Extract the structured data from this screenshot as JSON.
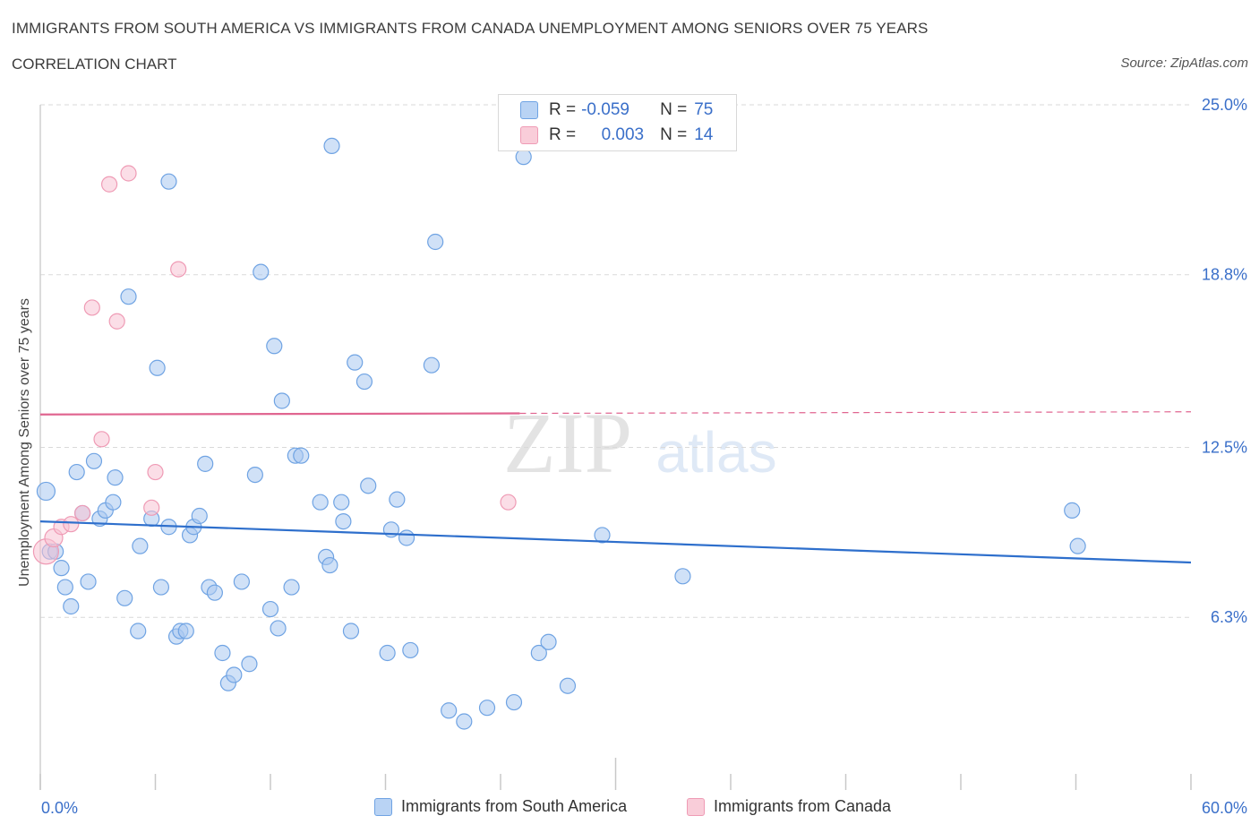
{
  "header": {
    "title": "IMMIGRANTS FROM SOUTH AMERICA VS IMMIGRANTS FROM CANADA UNEMPLOYMENT AMONG SENIORS OVER 75 YEARS",
    "subtitle": "CORRELATION CHART",
    "source": "Source: ZipAtlas.com"
  },
  "stats": {
    "row1": {
      "r_label": "R =",
      "r_value": "-0.059",
      "n_label": "N =",
      "n_value": "75"
    },
    "row2": {
      "r_label": "R =",
      "r_value": "0.003",
      "n_label": "N =",
      "n_value": "14"
    }
  },
  "watermark": {
    "zip": "ZIP",
    "atlas": "atlas"
  },
  "colors": {
    "south_america": "#6fa3e3",
    "south_america_fill": "#a9c8f0",
    "canada": "#ef9bb5",
    "canada_fill": "#f7c3d3",
    "sa_trend": "#2e6fcc",
    "ca_trend": "#e06590",
    "tick_label": "#3a6fc9",
    "grid": "#d9d9d9"
  },
  "chart_data": {
    "type": "scatter",
    "title": "IMMIGRANTS FROM SOUTH AMERICA VS IMMIGRANTS FROM CANADA UNEMPLOYMENT AMONG SENIORS OVER 75 YEARS",
    "xlabel": "",
    "ylabel": "Unemployment Among Seniors over 75 years",
    "xlim": [
      0,
      60
    ],
    "ylim": [
      0,
      25
    ],
    "x_tick_labels": [
      "0.0%",
      "60.0%"
    ],
    "y_tick_labels": [
      "25.0%",
      "18.8%",
      "12.5%",
      "6.3%"
    ],
    "y_ticks": [
      25.0,
      18.8,
      12.5,
      6.3
    ],
    "grid": true,
    "legend_position": "bottom",
    "series": [
      {
        "name": "Immigrants from South America",
        "color": "#6fa3e3",
        "trend": {
          "x": [
            0,
            60
          ],
          "y": [
            9.8,
            8.3
          ]
        },
        "points": [
          [
            0.3,
            10.9
          ],
          [
            0.5,
            8.7
          ],
          [
            0.8,
            8.7
          ],
          [
            1.1,
            8.1
          ],
          [
            1.3,
            7.4
          ],
          [
            1.6,
            6.7
          ],
          [
            1.9,
            11.6
          ],
          [
            2.2,
            10.1
          ],
          [
            2.5,
            7.6
          ],
          [
            2.8,
            12.0
          ],
          [
            3.1,
            9.9
          ],
          [
            3.4,
            10.2
          ],
          [
            3.8,
            10.5
          ],
          [
            3.9,
            11.4
          ],
          [
            4.4,
            7.0
          ],
          [
            4.6,
            18.0
          ],
          [
            5.1,
            5.8
          ],
          [
            5.2,
            8.9
          ],
          [
            5.8,
            9.9
          ],
          [
            6.1,
            15.4
          ],
          [
            6.3,
            7.4
          ],
          [
            6.7,
            22.2
          ],
          [
            6.7,
            9.6
          ],
          [
            7.1,
            5.6
          ],
          [
            7.3,
            5.8
          ],
          [
            7.6,
            5.8
          ],
          [
            7.8,
            9.3
          ],
          [
            8.0,
            9.6
          ],
          [
            8.3,
            10.0
          ],
          [
            8.6,
            11.9
          ],
          [
            8.8,
            7.4
          ],
          [
            9.1,
            7.2
          ],
          [
            9.5,
            5.0
          ],
          [
            9.8,
            3.9
          ],
          [
            10.1,
            4.2
          ],
          [
            10.5,
            7.6
          ],
          [
            10.9,
            4.6
          ],
          [
            11.2,
            11.5
          ],
          [
            11.5,
            18.9
          ],
          [
            12.2,
            16.2
          ],
          [
            12.0,
            6.6
          ],
          [
            12.4,
            5.9
          ],
          [
            12.6,
            14.2
          ],
          [
            13.1,
            7.4
          ],
          [
            13.3,
            12.2
          ],
          [
            13.6,
            12.2
          ],
          [
            14.6,
            10.5
          ],
          [
            14.9,
            8.5
          ],
          [
            15.1,
            8.2
          ],
          [
            15.2,
            23.5
          ],
          [
            15.7,
            10.5
          ],
          [
            15.8,
            9.8
          ],
          [
            16.2,
            5.8
          ],
          [
            16.4,
            15.6
          ],
          [
            16.9,
            14.9
          ],
          [
            17.1,
            11.1
          ],
          [
            18.1,
            5.0
          ],
          [
            18.3,
            9.5
          ],
          [
            18.6,
            10.6
          ],
          [
            19.1,
            9.2
          ],
          [
            19.3,
            5.1
          ],
          [
            20.4,
            15.5
          ],
          [
            20.6,
            20.0
          ],
          [
            21.3,
            2.9
          ],
          [
            22.1,
            2.5
          ],
          [
            23.3,
            3.0
          ],
          [
            24.7,
            3.2
          ],
          [
            25.2,
            23.1
          ],
          [
            26.0,
            5.0
          ],
          [
            26.5,
            5.4
          ],
          [
            27.5,
            3.8
          ],
          [
            29.3,
            9.3
          ],
          [
            33.5,
            7.8
          ],
          [
            53.8,
            10.2
          ],
          [
            54.1,
            8.9
          ]
        ]
      },
      {
        "name": "Immigrants from Canada",
        "color": "#ef9bb5",
        "trend": {
          "x": [
            0,
            60
          ],
          "y": [
            13.7,
            13.8
          ]
        },
        "trend_solid_until": 25,
        "points": [
          [
            0.3,
            8.7
          ],
          [
            0.7,
            9.2
          ],
          [
            1.1,
            9.6
          ],
          [
            1.6,
            9.7
          ],
          [
            2.2,
            10.1
          ],
          [
            2.7,
            17.6
          ],
          [
            3.2,
            12.8
          ],
          [
            3.6,
            22.1
          ],
          [
            4.0,
            17.1
          ],
          [
            4.6,
            22.5
          ],
          [
            5.8,
            10.3
          ],
          [
            6.0,
            11.6
          ],
          [
            7.2,
            19.0
          ],
          [
            24.4,
            10.5
          ]
        ]
      }
    ]
  },
  "legend": {
    "south_america": "Immigrants from South America",
    "canada": "Immigrants from Canada"
  }
}
